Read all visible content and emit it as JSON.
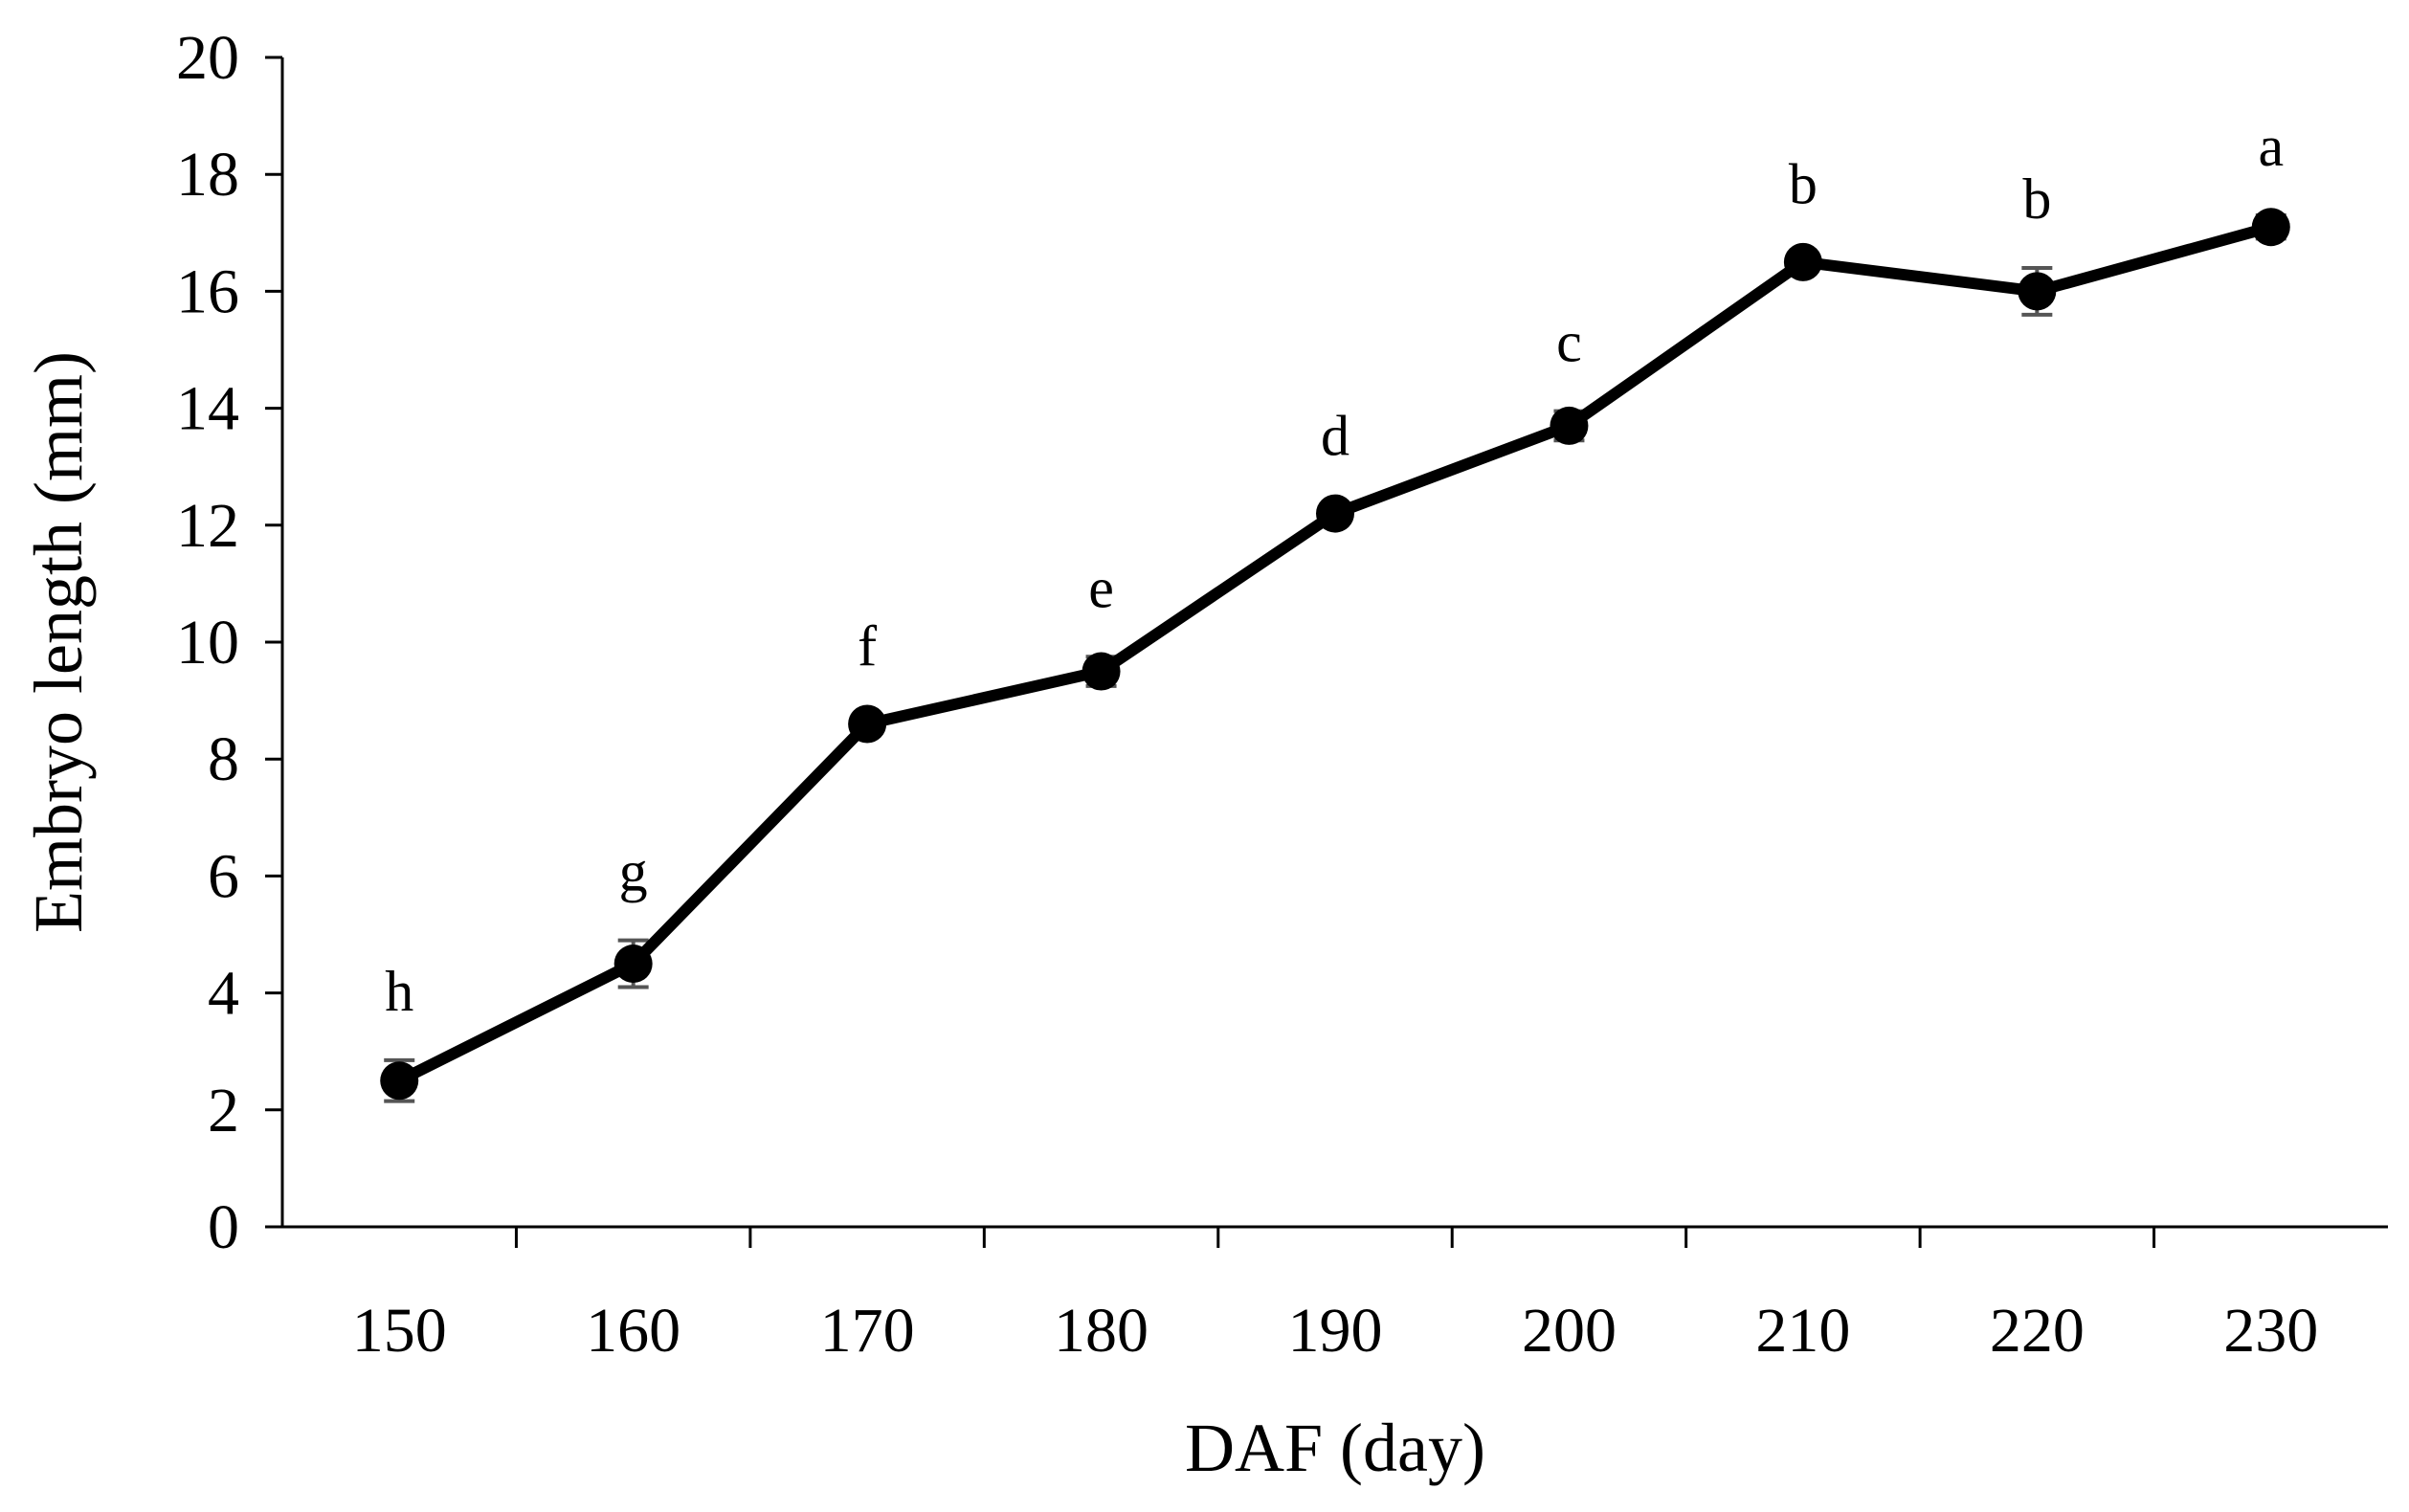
{
  "chart_data": {
    "type": "line",
    "title": "",
    "xlabel": "DAF (day)",
    "ylabel": "Embryo length (mm)",
    "ylim": [
      0,
      20
    ],
    "yticks": [
      0,
      2,
      4,
      6,
      8,
      10,
      12,
      14,
      16,
      18,
      20
    ],
    "categories": [
      "150",
      "160",
      "170",
      "180",
      "190",
      "200",
      "210",
      "220",
      "230"
    ],
    "series": [
      {
        "name": "Embryo length",
        "values": [
          2.5,
          4.5,
          8.6,
          9.5,
          12.2,
          13.7,
          16.5,
          16.0,
          17.1
        ],
        "errors": [
          0.35,
          0.4,
          0.15,
          0.25,
          0.15,
          0.25,
          0.15,
          0.4,
          0.2
        ],
        "labels": [
          "h",
          "g",
          "f",
          "e",
          "d",
          "c",
          "b",
          "b",
          "a"
        ]
      }
    ],
    "grid": false,
    "colors": {
      "line": "#000000",
      "marker": "#000000",
      "errorbar": "#555555",
      "axis": "#000000"
    }
  }
}
